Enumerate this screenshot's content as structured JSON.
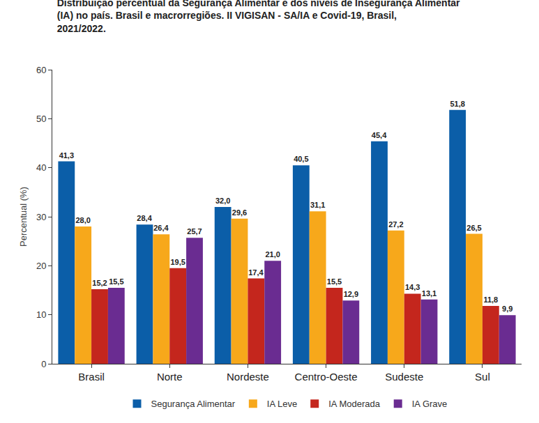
{
  "chart_data": {
    "type": "bar",
    "title": "Distribuição percentual da Segurança Alimentar e dos níveis de Insegurança Alimentar (IA) no país. Brasil e macrorregiões. II VIGISAN - SA/IA e Covid-19, Brasil, 2021/2022.",
    "y_label": "Percentual (%)",
    "categories": [
      "Brasil",
      "Norte",
      "Nordeste",
      "Centro-Oeste",
      "Sudeste",
      "Sul"
    ],
    "series": [
      {
        "name": "Segurança Alimentar",
        "color": "#0b5ea8",
        "values": [
          41.3,
          28.4,
          32.0,
          40.5,
          45.4,
          51.8
        ],
        "value_labels": [
          "41,3",
          "28,4",
          "32,0",
          "40,5",
          "45,4",
          "51,8"
        ]
      },
      {
        "name": "IA Leve",
        "color": "#f7a81b",
        "values": [
          28.0,
          26.4,
          29.6,
          31.1,
          27.2,
          26.5
        ],
        "value_labels": [
          "28,0",
          "26,4",
          "29,6",
          "31,1",
          "27,2",
          "26,5"
        ]
      },
      {
        "name": "IA Moderada",
        "color": "#c4261d",
        "values": [
          15.2,
          19.5,
          17.4,
          15.5,
          14.3,
          11.8
        ],
        "value_labels": [
          "15,2",
          "19,5",
          "17,4",
          "15,5",
          "14,3",
          "11,8"
        ]
      },
      {
        "name": "IA Grave",
        "color": "#6a2c91",
        "values": [
          15.5,
          25.7,
          21.0,
          12.9,
          13.1,
          9.9
        ],
        "value_labels": [
          "15,5",
          "25,7",
          "21,0",
          "12,9",
          "13,1",
          "9,9"
        ]
      }
    ],
    "ylim": [
      0,
      60
    ],
    "yticks": [
      0,
      10,
      20,
      30,
      40,
      50,
      60
    ],
    "grid": false,
    "legend": "bottom",
    "data_labels": true
  }
}
